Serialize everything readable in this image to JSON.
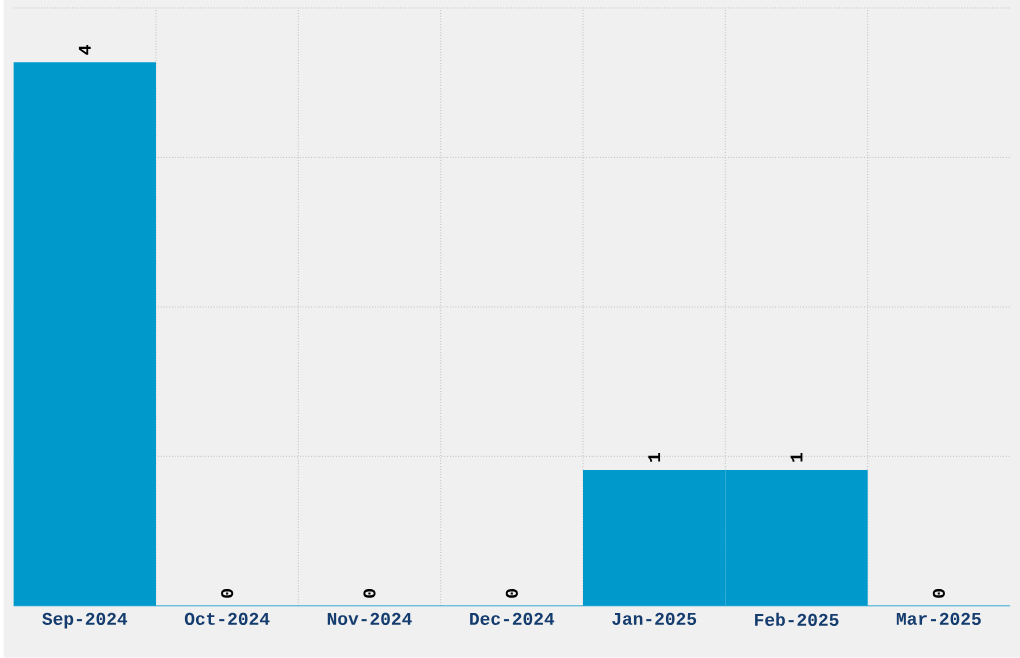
{
  "chart_data": {
    "type": "bar",
    "categories": [
      "Sep-2024",
      "Oct-2024",
      "Nov-2024",
      "Dec-2024",
      "Jan-2025",
      "Feb-2025",
      "Mar-2025"
    ],
    "values": [
      4,
      0,
      0,
      0,
      1,
      1,
      0
    ],
    "color": "#0099cc",
    "ylim": [
      0,
      4.4
    ],
    "grid": true,
    "data_labels": true,
    "tick_labels": "x"
  }
}
